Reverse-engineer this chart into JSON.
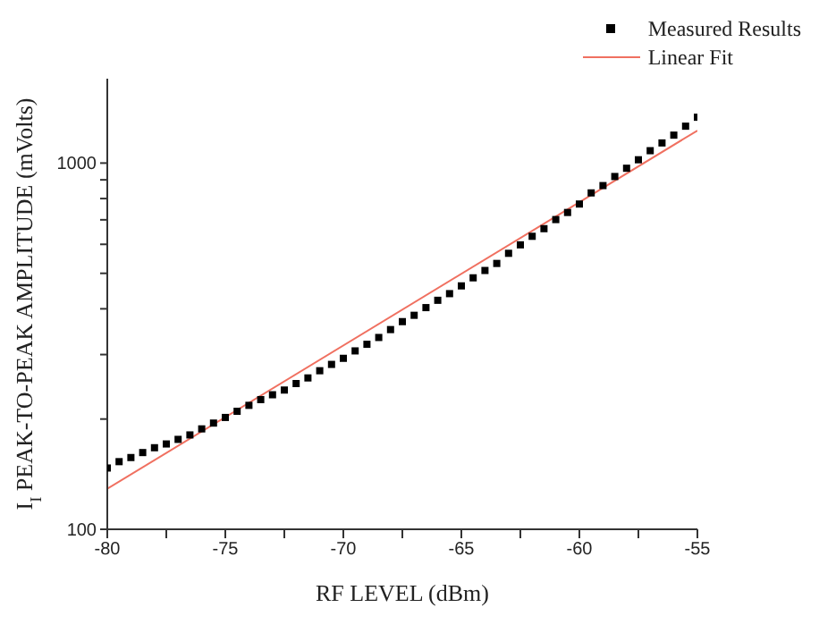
{
  "chart_data": {
    "type": "scatter",
    "xlabel": "RF LEVEL (dBm)",
    "ylabel": "I$_{I}$ PEAK-TO-PEAK AMPLITUDE (mVolts)",
    "series": [
      {
        "name": "Measured Results",
        "marker": "square",
        "color": "#000000",
        "x": [
          -80,
          -79.5,
          -79,
          -78.5,
          -78,
          -77.5,
          -77,
          -76.5,
          -76,
          -75.5,
          -75,
          -74.5,
          -74,
          -73.5,
          -73,
          -72.5,
          -72,
          -71.5,
          -71,
          -70.5,
          -70,
          -69.5,
          -69,
          -68.5,
          -68,
          -67.5,
          -67,
          -66.5,
          -66,
          -65.5,
          -65,
          -64.5,
          -64,
          -63.5,
          -63,
          -62.5,
          -62,
          -61.5,
          -61,
          -60.5,
          -60,
          -59.5,
          -59,
          -58.5,
          -58,
          -57.5,
          -57,
          -56.5,
          -56,
          -55.5,
          -55
        ],
        "values": [
          147,
          153,
          157,
          162,
          167,
          171,
          176,
          181,
          188,
          195,
          202,
          210,
          218,
          226,
          233,
          240,
          250,
          259,
          271,
          282,
          293,
          307,
          320,
          334,
          351,
          369,
          384,
          403,
          422,
          440,
          462,
          486,
          509,
          532,
          567,
          598,
          631,
          662,
          701,
          733,
          773,
          829,
          868,
          919,
          968,
          1021,
          1081,
          1135,
          1192,
          1261,
          1334
        ]
      },
      {
        "name": "Linear Fit",
        "type": "line",
        "marker": "none",
        "line_style": "solid",
        "color": "#f07060",
        "x": [
          -80,
          -55
        ],
        "values": [
          129,
          1227
        ]
      }
    ],
    "xlim": [
      -80,
      -55
    ],
    "xticks": [
      -80,
      {
        "value": -77.5,
        "label": null
      },
      -75,
      {
        "value": -72.5,
        "label": null
      },
      -70,
      {
        "value": -67.5,
        "label": null
      },
      -65,
      {
        "value": -62.5,
        "label": null
      },
      -60,
      {
        "value": -57.5,
        "label": null
      },
      -55
    ],
    "ylim": [
      100,
      1700
    ],
    "yticks": [
      100,
      {
        "value": 200,
        "label": null
      },
      {
        "value": 300,
        "label": null
      },
      {
        "value": 400,
        "label": null
      },
      {
        "value": 500,
        "label": null
      },
      {
        "value": 600,
        "label": null
      },
      {
        "value": 700,
        "label": null
      },
      {
        "value": 800,
        "label": null
      },
      {
        "value": 900,
        "label": null
      },
      1000
    ],
    "log": "y",
    "grid": false,
    "legend": "top right"
  }
}
